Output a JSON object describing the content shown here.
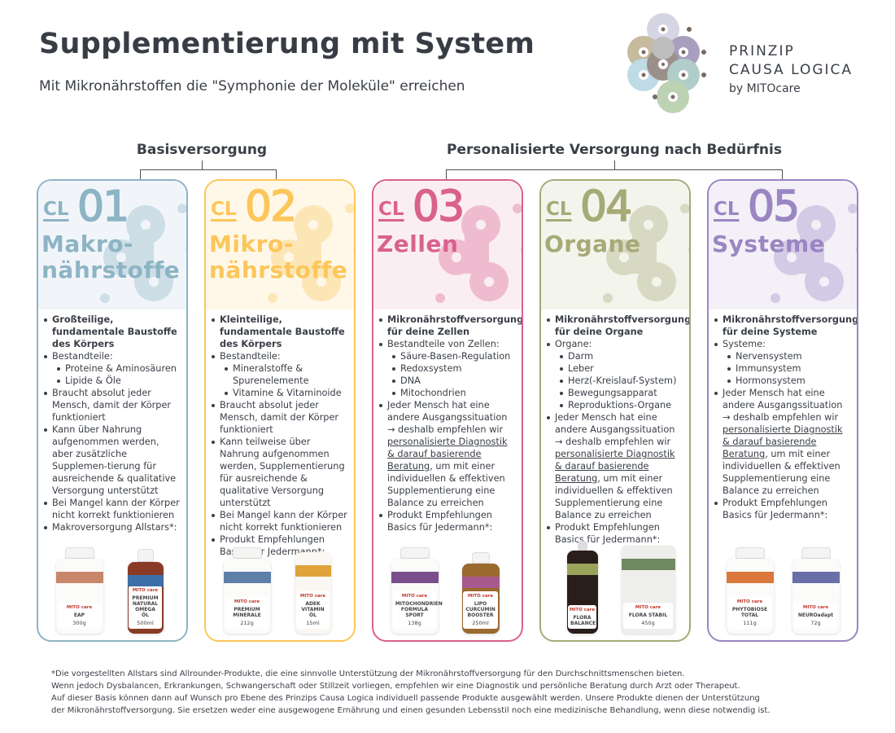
{
  "header": {
    "title": "Supplementierung mit System",
    "subtitle": "Mit Mikronährstoffen die \"Symphonie der Moleküle\" erreichen"
  },
  "logo": {
    "line1": "PRINZIP",
    "line2": "CAUSA LOGICA",
    "line3": "by MITOcare"
  },
  "groups": {
    "basis": "Basisversorgung",
    "personal": "Personalisierte Versorgung nach Bedürfnis"
  },
  "cards": [
    {
      "cl": "CL",
      "number": "01",
      "title": [
        "Makro-",
        "nährstoffe"
      ],
      "color": "#8db4c4",
      "tint": "#f1f5fa",
      "bullets": [
        {
          "text": "Großteilige, fundamentale Baustoffe des Körpers",
          "bold": true
        },
        {
          "text": "Bestandteile:",
          "sub": [
            "Proteine & Aminosäuren",
            "Lipide & Öle"
          ]
        },
        {
          "text": "Braucht absolut jeder Mensch, damit der Körper funktioniert"
        },
        {
          "text": "Kann über Nahrung aufgenommen werden, aber zusätzliche Supplemen-tierung für ausreichende & qualitative Versorgung unterstützt"
        },
        {
          "text": "Bei Mangel kann der Körper nicht korrekt funktionieren"
        },
        {
          "text": "Makroversorgung Allstars*:"
        }
      ],
      "products": [
        {
          "name": "EAP",
          "amount": "300g",
          "type": "jar",
          "band": "#c9866a"
        },
        {
          "name": "PREMIUM NATURAL OMEGA ÖL",
          "amount": "500ml",
          "type": "bottle",
          "band": "#3d6ea8"
        }
      ]
    },
    {
      "cl": "CL",
      "number": "02",
      "title": [
        "Mikro-",
        "nährstoffe"
      ],
      "color": "#fcc659",
      "tint": "#fff8e9",
      "bullets": [
        {
          "text": "Kleinteilige, fundamentale Baustoffe des Körpers",
          "bold": true
        },
        {
          "text": "Bestandteile:",
          "sub": [
            "Mineralstoffe & Spurenelemente",
            "Vitamine & Vitaminoide"
          ]
        },
        {
          "text": "Braucht absolut jeder Mensch, damit der Körper funktioniert"
        },
        {
          "text": "Kann teilweise über Nahrung aufgenommen werden, Supplementierung für ausreichende & qualitative Versorgung unterstützt"
        },
        {
          "text": "Bei Mangel kann der Körper nicht korrekt funktionieren"
        },
        {
          "text": "Produkt Empfehlungen Basics für Jedermann*:"
        }
      ],
      "products": [
        {
          "name": "PREMIUM MINERALE",
          "amount": "212g",
          "type": "jar",
          "band": "#5d7fa8"
        },
        {
          "name": "ADEK VITAMIN ÖL",
          "amount": "15ml",
          "type": "box",
          "band": "#e0a23a"
        }
      ]
    },
    {
      "cl": "CL",
      "number": "03",
      "title": [
        "Zellen"
      ],
      "color": "#d9628d",
      "tint": "#fbeef3",
      "bullets": [
        {
          "text": "Mikronährstoffversorgung für deine Zellen",
          "bold": true
        },
        {
          "text": "Bestandteile von Zellen:",
          "sub": [
            "Säure-Basen-Regulation",
            "Redoxsystem",
            "DNA",
            "Mitochondrien"
          ]
        },
        {
          "text": "Jeder Mensch hat eine andere Ausgangssituation → deshalb empfehlen wir ",
          "underline": "personalisierte Diagnostik & darauf basierende Beratung",
          "after": ", um mit einer individuellen & effektiven Supplementierung eine Balance zu erreichen"
        },
        {
          "text": "Produkt Empfehlungen Basics für Jedermann*:"
        }
      ],
      "products": [
        {
          "name": "MITOCHONDRIEN FORMULA SPORT",
          "amount": "138g",
          "type": "jar",
          "band": "#7a4e8c"
        },
        {
          "name": "LIPO CURCUMIN BOOSTER",
          "amount": "250ml",
          "type": "bottle-amber",
          "band": "#a85a8e"
        }
      ]
    },
    {
      "cl": "CL",
      "number": "04",
      "title": [
        "Organe"
      ],
      "color": "#a5aa77",
      "tint": "#f3f4ec",
      "bullets": [
        {
          "text": "Mikronährstoffversorgung für deine Organe",
          "bold": true
        },
        {
          "text": "Organe:",
          "sub": [
            "Darm",
            "Leber",
            "Herz(-Kreislauf-System)",
            "Bewegungsapparat",
            "Reproduktions-Organe"
          ]
        },
        {
          "text": "Jeder Mensch hat eine andere Ausgangssituation → deshalb empfehlen wir ",
          "underline": "personalisierte Diagnostik & darauf basierende Beratung",
          "after": ", um mit einer individuellen & effektiven Supplementierung eine Balance zu erreichen"
        },
        {
          "text": "Produkt Empfehlungen Basics für Jedermann*:"
        }
      ],
      "products": [
        {
          "name": "FLORA BALANCE",
          "amount": "",
          "type": "bottle-dark",
          "band": "#9aa35a"
        },
        {
          "name": "FLORA STABIL",
          "amount": "450g",
          "type": "pouch",
          "band": "#6f8a60"
        }
      ]
    },
    {
      "cl": "CL",
      "number": "05",
      "title": [
        "Systeme"
      ],
      "color": "#9a86c2",
      "tint": "#f3f0f8",
      "bullets": [
        {
          "text": "Mikronährstoffversorgung für deine Systeme",
          "bold": true
        },
        {
          "text": "Systeme:",
          "sub": [
            "Nervensystem",
            "Immunsystem",
            "Hormonsystem"
          ]
        },
        {
          "text": "Jeder Mensch hat eine andere Ausgangssituation → deshalb empfehlen wir ",
          "underline": "personalisierte Diagnostik & darauf basierende Beratung",
          "after": ", um mit einer individuellen & effektiven Supplementierung eine Balance zu erreichen"
        },
        {
          "text": "Produkt Empfehlungen Basics für Jedermann*:"
        }
      ],
      "products": [
        {
          "name": "PHYTOBIOSE TOTAL",
          "amount": "111g",
          "type": "jar",
          "band": "#d9783a"
        },
        {
          "name": "NEUROadapt",
          "amount": "72g",
          "type": "jar",
          "band": "#6a6fa8"
        }
      ]
    }
  ],
  "brand_mark": "MITO care",
  "footer": [
    "*Die vorgestellten Allstars sind Allrounder-Produkte, die eine sinnvolle Unterstützung der Mikronährstoffversorgung für den Durchschnittsmenschen bieten.",
    " Wenn jedoch Dysbalancen, Erkrankungen, Schwangerschaft oder Stillzeit vorliegen, empfehlen wir eine Diagnostik und persönliche Beratung durch Arzt oder Therapeut.",
    "Auf dieser Basis können dann auf Wunsch pro Ebene des Prinzips Causa Logica individuell passende Produkte ausgewählt werden. Unsere Produkte dienen der Unterstützung",
    "der Mikronährstoffversorgung. Sie ersetzen weder eine ausgewogene Ernährung und einen gesunden Lebensstil noch eine medizinische Behandlung, wenn diese notwendig ist."
  ]
}
